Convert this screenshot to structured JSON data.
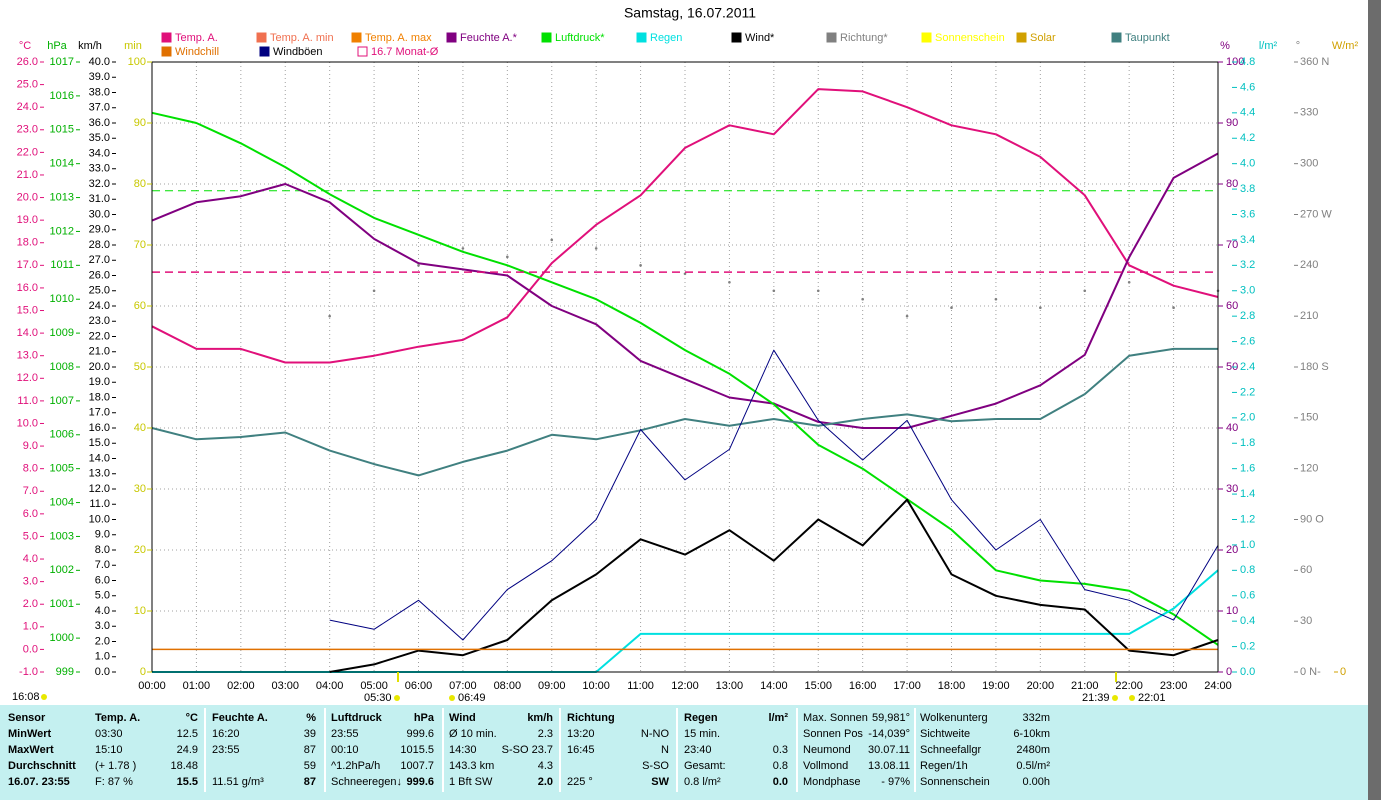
{
  "chart_data": {
    "type": "line",
    "title": "Samstag, 16.07.2011",
    "xlim": [
      0,
      24
    ],
    "xticks": [
      {
        "value": 0,
        "label": "00:00"
      },
      {
        "value": 1,
        "label": "01:00"
      },
      {
        "value": 2,
        "label": "02:00"
      },
      {
        "value": 3,
        "label": "03:00"
      },
      {
        "value": 4,
        "label": "04:00"
      },
      {
        "value": 5,
        "label": "05:00"
      },
      {
        "value": 6,
        "label": "06:00"
      },
      {
        "value": 7,
        "label": "07:00"
      },
      {
        "value": 8,
        "label": "08:00"
      },
      {
        "value": 9,
        "label": "09:00"
      },
      {
        "value": 10,
        "label": "10:00"
      },
      {
        "value": 11,
        "label": "11:00"
      },
      {
        "value": 12,
        "label": "12:00"
      },
      {
        "value": 13,
        "label": "13:00"
      },
      {
        "value": 14,
        "label": "14:00"
      },
      {
        "value": 15,
        "label": "15:00"
      },
      {
        "value": 16,
        "label": "16:00"
      },
      {
        "value": 17,
        "label": "17:00"
      },
      {
        "value": 18,
        "label": "18:00"
      },
      {
        "value": 19,
        "label": "19:00"
      },
      {
        "value": 20,
        "label": "20:00"
      },
      {
        "value": 21,
        "label": "21:00"
      },
      {
        "value": 22,
        "label": "22:00"
      },
      {
        "value": 23,
        "label": "23:00"
      },
      {
        "value": 24,
        "label": "24:00"
      }
    ],
    "x": [
      0,
      1,
      2,
      3,
      4,
      5,
      6,
      7,
      8,
      9,
      10,
      11,
      12,
      13,
      14,
      15,
      16,
      17,
      18,
      19,
      20,
      21,
      22,
      23,
      24
    ],
    "grid": true,
    "axes": [
      {
        "label": "°C",
        "color": "#e0107a",
        "ylim": [
          -1,
          26
        ],
        "yticks": [
          {
            "value": -1,
            "label": "-1.0"
          },
          {
            "value": 0,
            "label": "0.0"
          },
          {
            "value": 1,
            "label": "1.0"
          },
          {
            "value": 2,
            "label": "2.0"
          },
          {
            "value": 3,
            "label": "3.0"
          },
          {
            "value": 4,
            "label": "4.0"
          },
          {
            "value": 5,
            "label": "5.0"
          },
          {
            "value": 6,
            "label": "6.0"
          },
          {
            "value": 7,
            "label": "7.0"
          },
          {
            "value": 8,
            "label": "8.0"
          },
          {
            "value": 9,
            "label": "9.0"
          },
          {
            "value": 10,
            "label": "10.0"
          },
          {
            "value": 11,
            "label": "11.0"
          },
          {
            "value": 12,
            "label": "12.0"
          },
          {
            "value": 13,
            "label": "13.0"
          },
          {
            "value": 14,
            "label": "14.0"
          },
          {
            "value": 15,
            "label": "15.0"
          },
          {
            "value": 16,
            "label": "16.0"
          },
          {
            "value": 17,
            "label": "17.0"
          },
          {
            "value": 18,
            "label": "18.0"
          },
          {
            "value": 19,
            "label": "19.0"
          },
          {
            "value": 20,
            "label": "20.0"
          },
          {
            "value": 21,
            "label": "21.0"
          },
          {
            "value": 22,
            "label": "22.0"
          },
          {
            "value": 23,
            "label": "23.0"
          },
          {
            "value": 24,
            "label": "24.0"
          },
          {
            "value": 25,
            "label": "25.0"
          },
          {
            "value": 26,
            "label": "26.0"
          }
        ]
      },
      {
        "label": "hPa",
        "color": "#00b000",
        "ylim": [
          999,
          1017
        ],
        "yticks": [
          999,
          1000,
          1001,
          1002,
          1003,
          1004,
          1005,
          1006,
          1007,
          1008,
          1009,
          1010,
          1011,
          1012,
          1013,
          1014,
          1015,
          1016,
          1017
        ]
      },
      {
        "label": "km/h",
        "color": "#000000",
        "ylim": [
          0,
          40
        ],
        "yticks": [
          {
            "value": 0,
            "label": "0.0"
          },
          {
            "value": 1,
            "label": "1.0"
          },
          {
            "value": 2,
            "label": "2.0"
          },
          {
            "value": 3,
            "label": "3.0"
          },
          {
            "value": 4,
            "label": "4.0"
          },
          {
            "value": 5,
            "label": "5.0"
          },
          {
            "value": 6,
            "label": "6.0"
          },
          {
            "value": 7,
            "label": "7.0"
          },
          {
            "value": 8,
            "label": "8.0"
          },
          {
            "value": 9,
            "label": "9.0"
          },
          {
            "value": 10,
            "label": "10.0"
          },
          {
            "value": 11,
            "label": "11.0"
          },
          {
            "value": 12,
            "label": "12.0"
          },
          {
            "value": 13,
            "label": "13.0"
          },
          {
            "value": 14,
            "label": "14.0"
          },
          {
            "value": 15,
            "label": "15.0"
          },
          {
            "value": 16,
            "label": "16.0"
          },
          {
            "value": 17,
            "label": "17.0"
          },
          {
            "value": 18,
            "label": "18.0"
          },
          {
            "value": 19,
            "label": "19.0"
          },
          {
            "value": 20,
            "label": "20.0"
          },
          {
            "value": 21,
            "label": "21.0"
          },
          {
            "value": 22,
            "label": "22.0"
          },
          {
            "value": 23,
            "label": "23.0"
          },
          {
            "value": 24,
            "label": "24.0"
          },
          {
            "value": 25,
            "label": "25.0"
          },
          {
            "value": 26,
            "label": "26.0"
          },
          {
            "value": 27,
            "label": "27.0"
          },
          {
            "value": 28,
            "label": "28.0"
          },
          {
            "value": 29,
            "label": "29.0"
          },
          {
            "value": 30,
            "label": "30.0"
          },
          {
            "value": 31,
            "label": "31.0"
          },
          {
            "value": 32,
            "label": "32.0"
          },
          {
            "value": 33,
            "label": "33.0"
          },
          {
            "value": 34,
            "label": "34.0"
          },
          {
            "value": 35,
            "label": "35.0"
          },
          {
            "value": 36,
            "label": "36.0"
          },
          {
            "value": 37,
            "label": "37.0"
          },
          {
            "value": 38,
            "label": "38.0"
          },
          {
            "value": 39,
            "label": "39.0"
          },
          {
            "value": 40,
            "label": "40.0"
          }
        ]
      },
      {
        "label": "min",
        "color": "#c8c800",
        "ylim": [
          0,
          100
        ],
        "yticks": [
          0,
          10,
          20,
          30,
          40,
          50,
          60,
          70,
          80,
          90,
          100
        ]
      },
      {
        "label": "%",
        "color": "#800080",
        "ylim": [
          0,
          100
        ],
        "yticks": [
          0,
          10,
          20,
          30,
          40,
          50,
          60,
          70,
          80,
          90,
          100
        ]
      },
      {
        "label": "l/m²",
        "color": "#00c0c0",
        "ylim": [
          0,
          4.8
        ],
        "yticks": [
          {
            "value": 0,
            "label": "0.0"
          },
          0.2,
          0.4,
          0.6,
          0.8,
          {
            "value": 1,
            "label": "1.0"
          },
          1.2,
          1.4,
          1.6,
          1.8,
          {
            "value": 2,
            "label": "2.0"
          },
          2.2,
          2.4,
          2.6,
          2.8,
          {
            "value": 3,
            "label": "3.0"
          },
          3.2,
          3.4,
          3.6,
          3.8,
          {
            "value": 4,
            "label": "4.0"
          },
          4.2,
          4.4,
          4.6,
          4.8
        ]
      },
      {
        "label": "°",
        "color": "#808080",
        "ylim": [
          0,
          360
        ],
        "yticks": [
          {
            "value": 0,
            "label": "0   N-"
          },
          30,
          60,
          {
            "value": 90,
            "label": "90  O"
          },
          120,
          150,
          {
            "value": 180,
            "label": "180 S"
          },
          210,
          240,
          {
            "value": 270,
            "label": "270 W"
          },
          300,
          330,
          {
            "value": 360,
            "label": "360 N"
          }
        ]
      },
      {
        "label": "W/m²",
        "color": "#d0a000",
        "ylim": [
          0,
          1000
        ],
        "yticks": [
          0
        ]
      }
    ],
    "series": [
      {
        "name": "Temp. A.",
        "color": "#e0107a",
        "axis": 0,
        "values": [
          14.3,
          13.3,
          13.3,
          12.7,
          12.7,
          13.0,
          13.4,
          13.7,
          14.7,
          17.1,
          18.8,
          20.1,
          22.2,
          23.2,
          22.8,
          24.8,
          24.7,
          24.0,
          23.2,
          22.8,
          21.8,
          20.1,
          17.0,
          16.1,
          15.6
        ]
      },
      {
        "name": "Temp. A. min",
        "color": "#f07050"
      },
      {
        "name": "Temp. A. max",
        "color": "#f08000"
      },
      {
        "name": "Feuchte A.*",
        "color": "#800080",
        "axis": 4,
        "values": [
          74,
          77,
          78,
          80,
          77,
          71,
          67,
          66,
          65,
          60,
          57,
          51,
          48,
          45,
          44,
          41,
          40,
          40,
          42,
          44,
          47,
          52,
          68,
          81,
          85
        ]
      },
      {
        "name": "Luftdruck*",
        "color": "#00e000",
        "axis": 1,
        "values": [
          1015.5,
          1015.2,
          1014.6,
          1013.9,
          1013.1,
          1012.4,
          1011.9,
          1011.4,
          1011.0,
          1010.5,
          1010.0,
          1009.3,
          1008.5,
          1007.8,
          1006.9,
          1005.7,
          1005.0,
          1004.1,
          1003.2,
          1002.0,
          1001.7,
          1001.6,
          1001.4,
          1000.7,
          999.8
        ]
      },
      {
        "name": "Regen",
        "color": "#00e0e0",
        "axis": 5,
        "values": [
          0,
          0,
          0,
          0,
          0,
          0,
          0,
          0,
          0,
          0,
          0,
          0.3,
          0.3,
          0.3,
          0.3,
          0.3,
          0.3,
          0.3,
          0.3,
          0.3,
          0.3,
          0.3,
          0.3,
          0.5,
          0.8
        ]
      },
      {
        "name": "Wind*",
        "color": "#000000",
        "axis": 2,
        "values": [
          null,
          null,
          null,
          null,
          0,
          0.5,
          1.4,
          1.1,
          2.1,
          4.7,
          6.4,
          8.7,
          7.7,
          9.3,
          7.3,
          10.0,
          8.3,
          11.3,
          6.4,
          5.0,
          4.4,
          4.1,
          1.4,
          1.1,
          2.1
        ]
      },
      {
        "name": "Richtung*",
        "color": "#808080",
        "axis": 6,
        "style": "dots",
        "values": [
          null,
          null,
          null,
          null,
          210,
          225,
          240,
          250,
          245,
          255,
          250,
          240,
          235,
          230,
          225,
          225,
          220,
          210,
          215,
          220,
          215,
          225,
          230,
          215,
          225
        ]
      },
      {
        "name": "Sonnenschein",
        "color": "#ffff00"
      },
      {
        "name": "Solar",
        "color": "#d0a000"
      },
      {
        "name": "Taupunkt",
        "color": "#408080",
        "axis": 0,
        "values": [
          9.8,
          9.3,
          9.4,
          9.6,
          8.8,
          8.2,
          7.7,
          8.3,
          8.8,
          9.5,
          9.3,
          9.7,
          10.2,
          9.9,
          10.2,
          9.9,
          10.2,
          10.4,
          10.1,
          10.2,
          10.2,
          11.3,
          13.0,
          13.3,
          13.3
        ]
      },
      {
        "name": "Windchill",
        "color": "#e07000",
        "axis": 0,
        "ref_value": 0
      },
      {
        "name": "Windböen",
        "color": "#000080",
        "axis": 2,
        "values": [
          null,
          null,
          null,
          null,
          3.4,
          2.8,
          4.7,
          2.1,
          5.4,
          7.3,
          10.0,
          15.9,
          12.6,
          14.6,
          21.1,
          16.5,
          13.9,
          16.5,
          11.3,
          8.0,
          10.0,
          5.4,
          4.7,
          3.4,
          8.3
        ]
      },
      {
        "name": "16.7 Monat-Ø",
        "color": "#e0107a",
        "axis": 0,
        "ref_value": 16.7,
        "dashed": true
      }
    ],
    "reference_lines": [
      {
        "axis": 1,
        "value": 1013.2,
        "color": "#00e000",
        "dashed": true
      }
    ],
    "annotations": [
      "16:08",
      "05:30",
      "06:49",
      "21:39",
      "22:01"
    ]
  },
  "table": {
    "groups": [
      {
        "header": "Sensor",
        "rows": [
          "MinWert",
          "MaxWert",
          "Durchschnitt",
          "16.07. 23:55"
        ]
      },
      {
        "header": "Temp. A.",
        "unit": "°C",
        "rows": [
          [
            "03:30",
            "12.5"
          ],
          [
            "15:10",
            "24.9"
          ],
          [
            "(+ 1.78 )",
            "18.48"
          ],
          [
            "F: 87 %",
            "15.5"
          ]
        ]
      },
      {
        "header": "Feuchte A.",
        "unit": "%",
        "rows": [
          [
            "16:20",
            "39"
          ],
          [
            "23:55",
            "87"
          ],
          [
            null,
            "59"
          ],
          [
            "11.51 g/m³",
            "87"
          ]
        ]
      },
      {
        "header": "Luftdruck",
        "unit": "hPa",
        "rows": [
          [
            "23:55",
            "999.6"
          ],
          [
            "00:10",
            "1015.5"
          ],
          [
            "^1.2hPa/h",
            "1007.7"
          ],
          [
            "Schneeregen↓",
            "999.6"
          ]
        ]
      },
      {
        "header": "Wind",
        "unit": "km/h",
        "rows": [
          [
            "Ø 10 min.",
            "2.3"
          ],
          [
            "14:30",
            "S-SO 23.7"
          ],
          [
            "143.3 km",
            "4.3"
          ],
          [
            "1 Bft SW",
            "2.0"
          ]
        ]
      },
      {
        "header": "Richtung",
        "rows": [
          [
            "13:20",
            "N-NO"
          ],
          [
            "16:45",
            "N"
          ],
          [
            null,
            "S-SO"
          ],
          [
            "225 °",
            "SW"
          ]
        ]
      },
      {
        "header": "Regen",
        "unit": "l/m²",
        "rows": [
          [
            "15 min.",
            null
          ],
          [
            "23:40",
            "0.3"
          ],
          [
            "Gesamt:",
            "0.8"
          ],
          [
            "0.8 l/m²",
            "0.0"
          ]
        ]
      },
      {
        "rows": [
          [
            "Max. Sonnen",
            "59,981°"
          ],
          [
            "Sonnen Pos",
            "-14,039°"
          ],
          [
            "Neumond",
            "30.07.11"
          ],
          [
            "Vollmond",
            "13.08.11"
          ],
          [
            "Mondphase",
            "- 97%"
          ]
        ]
      },
      {
        "rows": [
          [
            "Wolkenunterg",
            "332m"
          ],
          [
            "Sichtweite",
            "6-10km"
          ],
          [
            "Schneefallgr",
            "2480m"
          ],
          [
            "Regen/1h",
            "0.5l/m²"
          ],
          [
            "Sonnenschein",
            "0.00h"
          ]
        ]
      }
    ]
  }
}
